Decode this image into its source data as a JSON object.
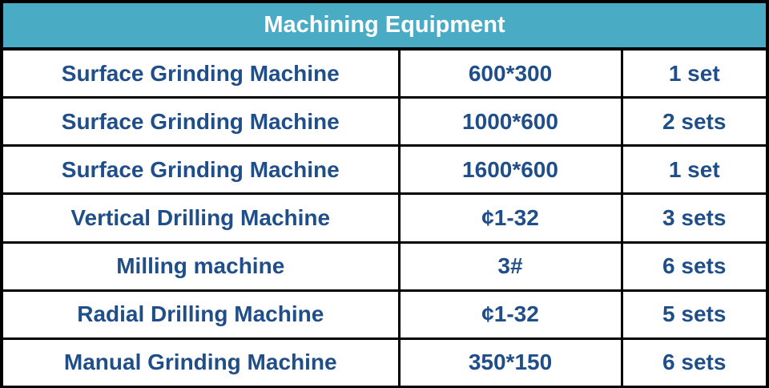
{
  "title": "Machining Equipment",
  "colors": {
    "header_bg": "#4aabc5",
    "text": "#1f4e89"
  },
  "rows": [
    {
      "name": "Surface Grinding Machine",
      "spec": "600*300",
      "qty": "1 set"
    },
    {
      "name": "Surface Grinding Machine",
      "spec": "1000*600",
      "qty": "2 sets"
    },
    {
      "name": "Surface Grinding Machine",
      "spec": "1600*600",
      "qty": "1 set"
    },
    {
      "name": "Vertical Drilling Machine",
      "spec": "¢1-32",
      "qty": "3 sets"
    },
    {
      "name": "Milling machine",
      "spec": "3#",
      "qty": "6 sets"
    },
    {
      "name": "Radial Drilling Machine",
      "spec": "¢1-32",
      "qty": "5 sets"
    },
    {
      "name": "Manual Grinding Machine",
      "spec": "350*150",
      "qty": "6 sets"
    }
  ]
}
